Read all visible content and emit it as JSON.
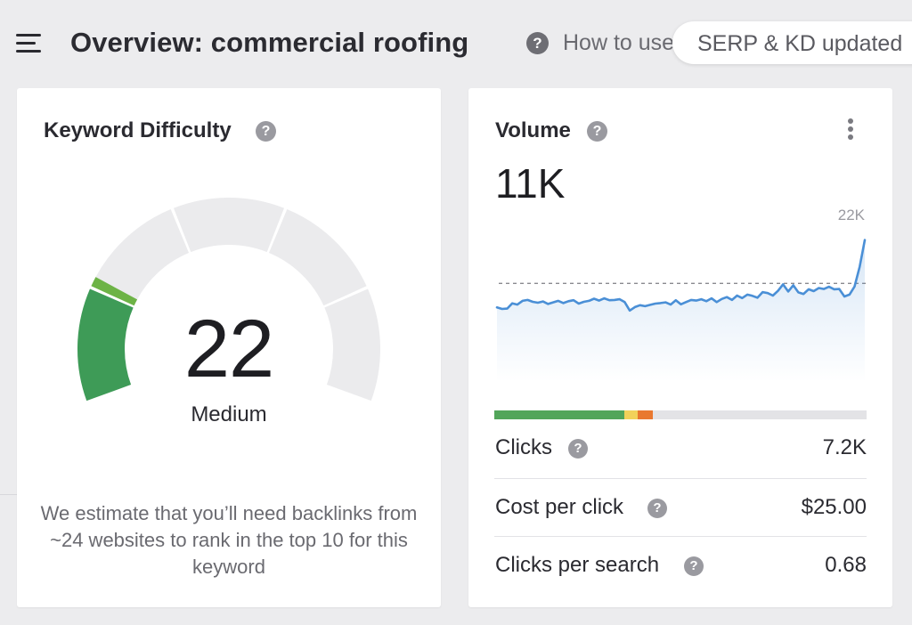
{
  "header": {
    "title": "Overview: commercial roofing",
    "help_icon_glyph": "?",
    "how_to_use_label": "How to use",
    "serp_status": "SERP & KD updated"
  },
  "keyword_difficulty": {
    "title": "Keyword Difficulty",
    "help_icon_glyph": "?",
    "score": "22",
    "score_value": 22,
    "level": "Medium",
    "estimate_text": "We estimate that you’ll need backlinks from ~24 websites to rank in the top 10 for this keyword",
    "colors": {
      "filled_light": "#6db346",
      "filled_dark": "#3e9b57",
      "unfilled": "#ebebed"
    }
  },
  "volume": {
    "title": "Volume",
    "help_icon_glyph": "?",
    "more_icon": "more-vertical-icon",
    "value": "11K",
    "max_label": "22K",
    "trend": [
      20.5,
      20.0,
      20.1,
      21.8,
      21.4,
      22.6,
      22.9,
      22.3,
      22.0,
      22.4,
      21.6,
      22.1,
      22.6,
      21.9,
      22.5,
      22.8,
      21.7,
      22.3,
      22.6,
      23.3,
      22.7,
      23.4,
      22.8,
      22.9,
      23.1,
      22.2,
      19.5,
      20.6,
      21.2,
      20.9,
      21.3,
      21.7,
      21.9,
      22.1,
      21.4,
      22.8,
      21.5,
      22.2,
      22.9,
      22.7,
      23.1,
      22.5,
      23.4,
      22.2,
      23.2,
      23.8,
      22.9,
      24.3,
      23.5,
      24.6,
      24.2,
      23.6,
      25.4,
      25.1,
      24.3,
      25.8,
      27.9,
      25.6,
      27.6,
      25.3,
      24.8,
      26.3,
      25.7,
      26.7,
      26.4,
      27.1,
      26.3,
      26.4,
      24.0,
      24.6,
      27.2,
      33.6,
      42.1
    ],
    "avg_level": 28.2,
    "line_color": "#4a8fd6",
    "split_bar": [
      {
        "name": "clicks-organic",
        "fraction": 0.349,
        "color": "#52a55a"
      },
      {
        "name": "clicks-mixed",
        "fraction": 0.036,
        "color": "#f2d15a"
      },
      {
        "name": "clicks-paid",
        "fraction": 0.042,
        "color": "#e9782f"
      },
      {
        "name": "no-clicks",
        "fraction": 0.573,
        "color": "#e3e3e6"
      }
    ],
    "metrics": [
      {
        "label": "Clicks",
        "value": "7.2K"
      },
      {
        "label": "Cost per click",
        "value": "$25.00"
      },
      {
        "label": "Clicks per search",
        "value": "0.68"
      }
    ]
  }
}
